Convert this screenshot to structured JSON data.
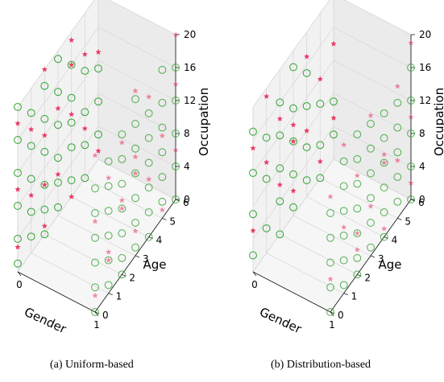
{
  "figure": {
    "caption_a": "(a)  Uniform-based",
    "caption_b": "(b)  Distribution-based"
  },
  "colors": {
    "circle": "#2ca02c",
    "star": "#e8345f",
    "pane": "#f2f2f2",
    "grid": "#d9d9d9"
  },
  "chart_data": [
    {
      "type": "scatter",
      "panel": "(a)",
      "title": "",
      "xlabel": "Gender",
      "ylabel": "Age",
      "zlabel": "Occupation",
      "xticks": [
        "0",
        "1"
      ],
      "yticks": [
        "0",
        "1",
        "2",
        "3",
        "4",
        "5",
        "6"
      ],
      "zticks": [
        "0",
        "4",
        "8",
        "12",
        "16",
        "20"
      ],
      "xlim": [
        0,
        1
      ],
      "ylim": [
        0,
        6
      ],
      "zlim": [
        0,
        20
      ],
      "series": [
        {
          "marker": "circle",
          "points": [
            [
              0,
              0,
              1
            ],
            [
              0,
              0,
              4
            ],
            [
              0,
              0,
              8
            ],
            [
              0,
              0,
              12
            ],
            [
              0,
              0,
              16
            ],
            [
              0,
              0,
              20
            ],
            [
              0,
              1,
              2
            ],
            [
              0,
              1,
              5
            ],
            [
              0,
              1,
              9
            ],
            [
              0,
              1,
              13
            ],
            [
              0,
              1,
              17
            ],
            [
              0,
              2,
              0
            ],
            [
              0,
              2,
              3
            ],
            [
              0,
              2,
              6
            ],
            [
              0,
              2,
              10
            ],
            [
              0,
              2,
              14
            ],
            [
              0,
              2,
              18
            ],
            [
              0,
              3,
              1
            ],
            [
              0,
              3,
              4
            ],
            [
              0,
              3,
              7
            ],
            [
              0,
              3,
              11
            ],
            [
              0,
              3,
              15
            ],
            [
              0,
              3,
              19
            ],
            [
              0,
              4,
              2
            ],
            [
              0,
              4,
              6
            ],
            [
              0,
              4,
              9
            ],
            [
              0,
              4,
              12
            ],
            [
              0,
              4,
              16
            ],
            [
              0,
              5,
              0
            ],
            [
              0,
              5,
              4
            ],
            [
              0,
              5,
              8
            ],
            [
              0,
              5,
              13
            ],
            [
              0,
              6,
              3
            ],
            [
              0,
              6,
              7
            ],
            [
              0,
              6,
              11
            ],
            [
              1,
              0,
              0
            ],
            [
              1,
              0,
              3
            ],
            [
              1,
              0,
              6
            ],
            [
              1,
              0,
              9
            ],
            [
              1,
              0,
              12
            ],
            [
              1,
              0,
              15
            ],
            [
              1,
              1,
              1
            ],
            [
              1,
              1,
              4
            ],
            [
              1,
              1,
              7
            ],
            [
              1,
              1,
              10
            ],
            [
              1,
              1,
              13
            ],
            [
              1,
              1,
              16
            ],
            [
              1,
              2,
              0
            ],
            [
              1,
              2,
              2
            ],
            [
              1,
              2,
              5
            ],
            [
              1,
              2,
              8
            ],
            [
              1,
              2,
              11
            ],
            [
              1,
              2,
              14
            ],
            [
              1,
              2,
              17
            ],
            [
              1,
              3,
              1
            ],
            [
              1,
              3,
              4
            ],
            [
              1,
              3,
              7
            ],
            [
              1,
              3,
              10
            ],
            [
              1,
              3,
              13
            ],
            [
              1,
              3,
              16
            ],
            [
              1,
              3,
              19
            ],
            [
              1,
              4,
              0
            ],
            [
              1,
              4,
              3
            ],
            [
              1,
              4,
              6
            ],
            [
              1,
              4,
              9
            ],
            [
              1,
              4,
              12
            ],
            [
              1,
              4,
              15
            ],
            [
              1,
              5,
              2
            ],
            [
              1,
              5,
              5
            ],
            [
              1,
              5,
              8
            ],
            [
              1,
              5,
              11
            ],
            [
              1,
              5,
              14
            ],
            [
              1,
              5,
              18
            ],
            [
              1,
              6,
              0
            ],
            [
              1,
              6,
              4
            ],
            [
              1,
              6,
              8
            ],
            [
              1,
              6,
              12
            ],
            [
              1,
              6,
              16
            ]
          ]
        },
        {
          "marker": "star",
          "points": [
            [
              0,
              0,
              3
            ],
            [
              0,
              0,
              10
            ],
            [
              0,
              0,
              18
            ],
            [
              0,
              1,
              7
            ],
            [
              0,
              1,
              15
            ],
            [
              0,
              2,
              1
            ],
            [
              0,
              2,
              12
            ],
            [
              0,
              2,
              20
            ],
            [
              0,
              3,
              5
            ],
            [
              0,
              3,
              13
            ],
            [
              0,
              4,
              0
            ],
            [
              0,
              4,
              10
            ],
            [
              0,
              4,
              19
            ],
            [
              0,
              5,
              6
            ],
            [
              0,
              5,
              15
            ],
            [
              0,
              6,
              1
            ],
            [
              0,
              6,
              13
            ],
            [
              0,
              6,
              20
            ],
            [
              1,
              0,
              2
            ],
            [
              1,
              0,
              11
            ],
            [
              1,
              0,
              19
            ],
            [
              1,
              1,
              5
            ],
            [
              1,
              1,
              14
            ],
            [
              1,
              2,
              9
            ],
            [
              1,
              2,
              16
            ],
            [
              1,
              3,
              3
            ],
            [
              1,
              3,
              12
            ],
            [
              1,
              3,
              20
            ],
            [
              1,
              4,
              7
            ],
            [
              1,
              4,
              17
            ],
            [
              1,
              5,
              1
            ],
            [
              1,
              5,
              10
            ],
            [
              1,
              6,
              6
            ],
            [
              1,
              6,
              14
            ],
            [
              1,
              6,
              20
            ],
            [
              0,
              2,
              6
            ],
            [
              1,
              2,
              8
            ],
            [
              1,
              3,
              10
            ],
            [
              0,
              4,
              16
            ],
            [
              1,
              1,
              4
            ]
          ]
        }
      ]
    },
    {
      "type": "scatter",
      "panel": "(b)",
      "title": "",
      "xlabel": "Gender",
      "ylabel": "Age",
      "zlabel": "Occupation",
      "xticks": [
        "0",
        "1"
      ],
      "yticks": [
        "0",
        "1",
        "2",
        "3",
        "4",
        "5",
        "6"
      ],
      "zticks": [
        "0",
        "4",
        "8",
        "12",
        "16",
        "20"
      ],
      "xlim": [
        0,
        1
      ],
      "ylim": [
        0,
        6
      ],
      "zlim": [
        0,
        20
      ],
      "series": [
        {
          "marker": "circle",
          "points": [
            [
              0,
              0,
              2
            ],
            [
              0,
              0,
              7
            ],
            [
              0,
              0,
              12
            ],
            [
              0,
              0,
              17
            ],
            [
              0,
              1,
              3
            ],
            [
              0,
              1,
              9
            ],
            [
              0,
              1,
              14
            ],
            [
              0,
              2,
              0
            ],
            [
              0,
              2,
              4
            ],
            [
              0,
              2,
              8
            ],
            [
              0,
              2,
              12
            ],
            [
              0,
              2,
              16
            ],
            [
              0,
              3,
              1
            ],
            [
              0,
              3,
              5
            ],
            [
              0,
              3,
              9
            ],
            [
              0,
              3,
              13
            ],
            [
              0,
              3,
              18
            ],
            [
              0,
              4,
              2
            ],
            [
              0,
              4,
              6
            ],
            [
              0,
              4,
              11
            ],
            [
              0,
              4,
              15
            ],
            [
              0,
              5,
              0
            ],
            [
              0,
              5,
              4
            ],
            [
              0,
              5,
              9
            ],
            [
              0,
              6,
              3
            ],
            [
              0,
              6,
              7
            ],
            [
              1,
              0,
              0
            ],
            [
              1,
              0,
              3
            ],
            [
              1,
              0,
              6
            ],
            [
              1,
              0,
              9
            ],
            [
              1,
              0,
              12
            ],
            [
              1,
              1,
              1
            ],
            [
              1,
              1,
              4
            ],
            [
              1,
              1,
              7
            ],
            [
              1,
              1,
              10
            ],
            [
              1,
              1,
              13
            ],
            [
              1,
              1,
              16
            ],
            [
              1,
              2,
              0
            ],
            [
              1,
              2,
              2
            ],
            [
              1,
              2,
              5
            ],
            [
              1,
              2,
              8
            ],
            [
              1,
              2,
              11
            ],
            [
              1,
              2,
              14
            ],
            [
              1,
              2,
              17
            ],
            [
              1,
              3,
              1
            ],
            [
              1,
              3,
              4
            ],
            [
              1,
              3,
              7
            ],
            [
              1,
              3,
              10
            ],
            [
              1,
              3,
              13
            ],
            [
              1,
              3,
              16
            ],
            [
              1,
              4,
              0
            ],
            [
              1,
              4,
              3
            ],
            [
              1,
              4,
              6
            ],
            [
              1,
              4,
              9
            ],
            [
              1,
              4,
              12
            ],
            [
              1,
              4,
              15
            ],
            [
              1,
              5,
              2
            ],
            [
              1,
              5,
              5
            ],
            [
              1,
              5,
              8
            ],
            [
              1,
              5,
              11
            ],
            [
              1,
              5,
              14
            ],
            [
              1,
              6,
              0
            ],
            [
              1,
              6,
              4
            ],
            [
              1,
              6,
              8
            ],
            [
              1,
              6,
              12
            ],
            [
              1,
              6,
              16
            ]
          ]
        },
        {
          "marker": "star",
          "points": [
            [
              0,
              0,
              5
            ],
            [
              0,
              0,
              15
            ],
            [
              0,
              1,
              11
            ],
            [
              0,
              1,
              19
            ],
            [
              0,
              2,
              6
            ],
            [
              0,
              2,
              14
            ],
            [
              0,
              3,
              3
            ],
            [
              0,
              3,
              11
            ],
            [
              0,
              4,
              8
            ],
            [
              0,
              4,
              17
            ],
            [
              0,
              5,
              2
            ],
            [
              0,
              5,
              12
            ],
            [
              0,
              6,
              5
            ],
            [
              0,
              6,
              14
            ],
            [
              1,
              0,
              4
            ],
            [
              1,
              0,
              14
            ],
            [
              1,
              1,
              8
            ],
            [
              1,
              1,
              18
            ],
            [
              1,
              2,
              3
            ],
            [
              1,
              2,
              12
            ],
            [
              1,
              3,
              6
            ],
            [
              1,
              3,
              17
            ],
            [
              1,
              4,
              1
            ],
            [
              1,
              4,
              10
            ],
            [
              1,
              5,
              7
            ],
            [
              1,
              5,
              16
            ],
            [
              1,
              6,
              2
            ],
            [
              1,
              6,
              10
            ],
            [
              1,
              6,
              19
            ],
            [
              1,
              2,
              5
            ],
            [
              0,
              3,
              9
            ],
            [
              1,
              4,
              9
            ]
          ]
        }
      ]
    }
  ]
}
